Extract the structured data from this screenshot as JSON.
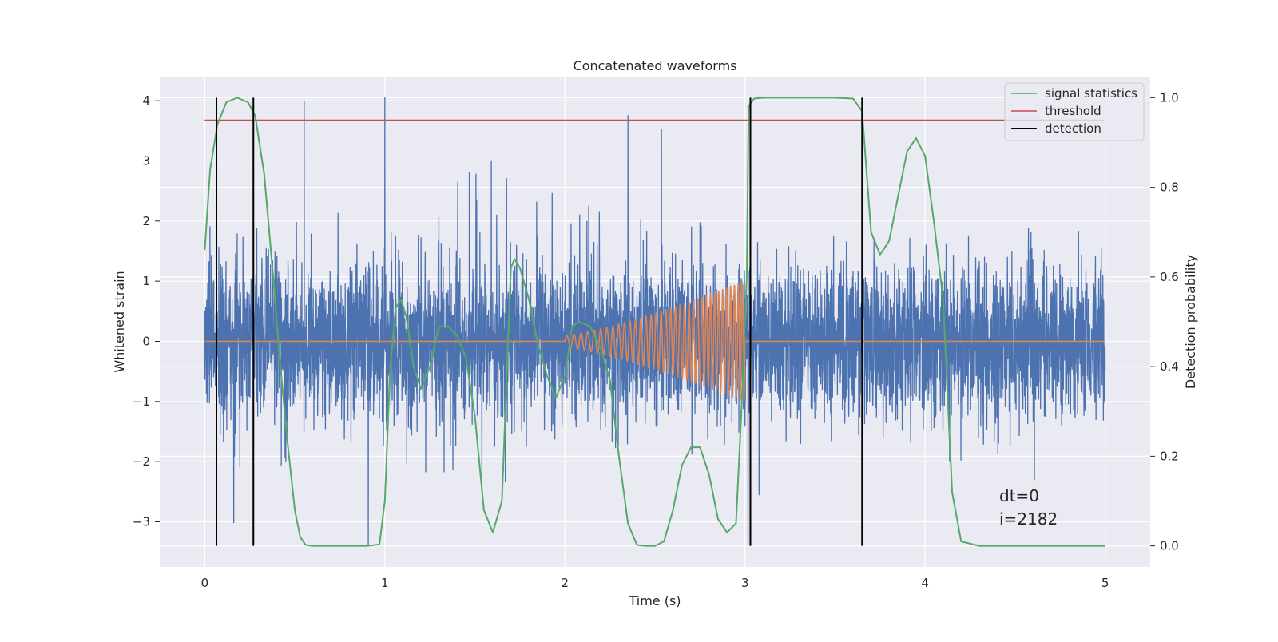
{
  "chart_data": {
    "type": "line",
    "title": "Concatenated waveforms",
    "xlabel": "Time (s)",
    "ylabel": "Whitened strain",
    "y2label": "Detection probability",
    "xlim": [
      -0.25,
      5.25
    ],
    "ylim": [
      -3.75,
      4.4
    ],
    "y2lim": [
      -0.047,
      1.047
    ],
    "xticks": [
      0,
      1,
      2,
      3,
      4,
      5
    ],
    "xtick_labels": [
      "0",
      "1",
      "2",
      "3",
      "4",
      "5"
    ],
    "yticks": [
      -3,
      -2,
      -1,
      0,
      1,
      2,
      3,
      4
    ],
    "ytick_labels": [
      "−3",
      "−2",
      "−1",
      "0",
      "1",
      "2",
      "3",
      "4"
    ],
    "y2ticks": [
      0.0,
      0.2,
      0.4,
      0.6,
      0.8,
      1.0
    ],
    "y2tick_labels": [
      "0.0",
      "0.2",
      "0.4",
      "0.6",
      "0.8",
      "1.0"
    ],
    "grid": true,
    "legend_position": "top-right",
    "annotations": [
      "dt=0",
      "i=2182"
    ],
    "series": [
      {
        "name": "",
        "kind": "noise",
        "axis": "left",
        "color": "#4c72b0",
        "x_range": [
          0,
          5
        ],
        "approx_std": 0.9,
        "max": 4.05,
        "min": -3.4
      },
      {
        "name": "",
        "kind": "chirp",
        "axis": "left",
        "color": "#dd8452",
        "baseline": 0,
        "chirp_start": 2.0,
        "chirp_end": 3.0,
        "amp_start": 0.1,
        "amp_end": 1.0,
        "freq_start": 24,
        "freq_end": 48
      },
      {
        "name": "signal statistics",
        "kind": "line",
        "axis": "right",
        "color": "#55a868",
        "x": [
          0.0,
          0.03,
          0.07,
          0.12,
          0.18,
          0.24,
          0.28,
          0.33,
          0.38,
          0.42,
          0.46,
          0.5,
          0.53,
          0.56,
          0.6,
          0.7,
          0.8,
          0.9,
          0.97,
          1.0,
          1.03,
          1.06,
          1.09,
          1.12,
          1.16,
          1.2,
          1.25,
          1.3,
          1.35,
          1.4,
          1.45,
          1.5,
          1.55,
          1.6,
          1.65,
          1.7,
          1.72,
          1.75,
          1.8,
          1.85,
          1.9,
          1.95,
          2.0,
          2.04,
          2.08,
          2.14,
          2.2,
          2.25,
          2.3,
          2.35,
          2.4,
          2.45,
          2.5,
          2.55,
          2.6,
          2.65,
          2.7,
          2.75,
          2.8,
          2.85,
          2.9,
          2.95,
          2.98,
          3.01,
          3.02,
          3.05,
          3.1,
          3.3,
          3.5,
          3.6,
          3.65,
          3.7,
          3.75,
          3.8,
          3.85,
          3.9,
          3.95,
          4.0,
          4.05,
          4.1,
          4.15,
          4.2,
          4.3,
          4.5,
          5.0
        ],
        "values": [
          0.66,
          0.84,
          0.94,
          0.99,
          1.0,
          0.99,
          0.96,
          0.83,
          0.6,
          0.4,
          0.23,
          0.08,
          0.02,
          0.002,
          0.0,
          0.0,
          0.0,
          0.0,
          0.003,
          0.1,
          0.4,
          0.53,
          0.55,
          0.51,
          0.4,
          0.35,
          0.4,
          0.49,
          0.49,
          0.47,
          0.42,
          0.29,
          0.08,
          0.03,
          0.1,
          0.62,
          0.64,
          0.62,
          0.55,
          0.45,
          0.38,
          0.33,
          0.38,
          0.49,
          0.5,
          0.49,
          0.44,
          0.37,
          0.2,
          0.05,
          0.002,
          0.0,
          0.0,
          0.01,
          0.08,
          0.18,
          0.22,
          0.22,
          0.16,
          0.06,
          0.03,
          0.05,
          0.3,
          0.6,
          0.98,
          0.998,
          1.0,
          1.0,
          1.0,
          0.998,
          0.97,
          0.7,
          0.65,
          0.68,
          0.78,
          0.88,
          0.91,
          0.87,
          0.72,
          0.55,
          0.12,
          0.01,
          0.0,
          0.0,
          0.0
        ]
      },
      {
        "name": "threshold",
        "kind": "hline",
        "axis": "right",
        "color": "#c44e52",
        "value": 0.95,
        "x_range": [
          0,
          5
        ]
      },
      {
        "name": "detection",
        "kind": "vlines",
        "axis": "right",
        "color": "#000000",
        "x": [
          0.065,
          0.27,
          3.03,
          3.65
        ],
        "y_range": [
          0.0,
          1.0
        ]
      }
    ]
  }
}
